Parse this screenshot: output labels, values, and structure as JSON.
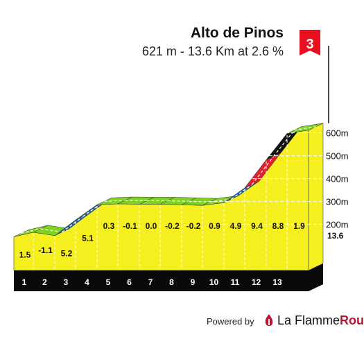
{
  "header": {
    "title": "Alto de Pinos",
    "subtitle": "621 m - 13.6 Km at 2.6 %"
  },
  "category_marker": "3",
  "footer": {
    "powered_by": "Powered by",
    "brand_prefix": "La Flamme",
    "brand_suffix": "Rouge"
  },
  "colors": {
    "profile_fill": "#f5ef1f",
    "gradient_easy": "#7ed321",
    "gradient_moderate": "#2a6496",
    "gradient_hard": "#111111",
    "gradient_steep": "#e0202c",
    "base_band": "#0a0a0a",
    "left_face": "#9c7a12",
    "flag": "#e8101f"
  },
  "chart_data": {
    "type": "area",
    "title": "Alto de Pinos",
    "subtitle": "621 m - 13.6 Km at 2.6 %",
    "x_unit": "km",
    "x_ticks": [
      "1",
      "2",
      "3",
      "4",
      "5",
      "6",
      "7",
      "8",
      "9",
      "10",
      "11",
      "12",
      "13"
    ],
    "x_end_label": "13.6",
    "y_ticks": [
      "200m",
      "300m",
      "400m",
      "500m",
      "600m"
    ],
    "ylim": [
      0,
      621
    ],
    "gradients": [
      1.5,
      -1.1,
      5.2,
      5.1,
      0.3,
      -0.1,
      0.0,
      -0.2,
      -0.2,
      0.9,
      4.9,
      9.4,
      8.8,
      1.9
    ],
    "gradient_labels": [
      "1.5",
      "-1.1",
      "5.2",
      "5.1",
      "0.3",
      "-0.1",
      "0.0",
      "-0.2",
      "-0.2",
      "0.9",
      "4.9",
      "9.4",
      "8.8",
      "1.9"
    ],
    "segment_km": [
      1,
      1,
      1,
      1,
      1,
      1,
      1,
      1,
      1,
      1,
      1,
      1,
      1,
      0.6
    ],
    "summit_altitude_m": 621,
    "distance_km": 13.6,
    "avg_gradient_pct": 2.6
  }
}
